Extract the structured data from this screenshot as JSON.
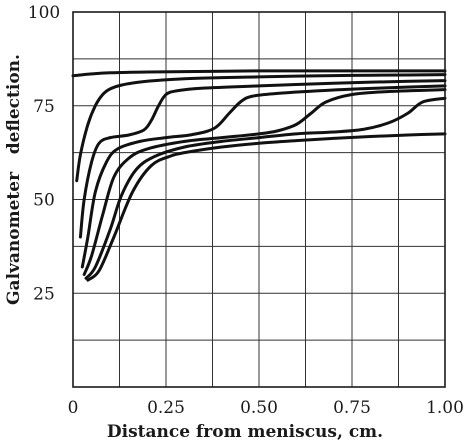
{
  "chart_data": {
    "type": "line",
    "title": "",
    "xlabel": "Distance from meniscus, cm.",
    "ylabel": "Galvanometer   deflection.",
    "xlim": [
      0,
      1.0
    ],
    "ylim": [
      0,
      100
    ],
    "x_ticks": [
      0,
      0.25,
      0.5,
      0.75,
      1.0
    ],
    "x_tick_labels": [
      "0",
      "0.25",
      "0.50",
      "0.75",
      "1.00"
    ],
    "y_ticks": [
      25,
      50,
      75,
      100
    ],
    "y_tick_labels": [
      "25",
      "50",
      "75",
      "100"
    ],
    "grid": true,
    "series": [
      {
        "x": [
          0.0,
          0.05,
          0.1,
          0.2,
          0.3,
          0.4,
          0.5,
          0.6,
          0.7,
          0.8,
          0.9,
          1.0
        ],
        "y": [
          83.0,
          83.5,
          83.8,
          84.0,
          84.1,
          84.2,
          84.3,
          84.3,
          84.3,
          84.3,
          84.3,
          84.3
        ]
      },
      {
        "x": [
          0.01,
          0.02,
          0.04,
          0.06,
          0.08,
          0.1,
          0.13,
          0.17,
          0.22,
          0.3,
          0.4,
          0.5,
          0.6,
          0.75,
          0.9,
          1.0
        ],
        "y": [
          55.0,
          62.0,
          70.0,
          75.0,
          78.0,
          79.5,
          80.5,
          81.2,
          81.7,
          82.2,
          82.5,
          82.7,
          82.9,
          83.1,
          83.2,
          83.3
        ]
      },
      {
        "x": [
          0.02,
          0.03,
          0.05,
          0.07,
          0.1,
          0.15,
          0.19,
          0.21,
          0.23,
          0.25,
          0.28,
          0.35,
          0.5,
          0.7,
          0.85,
          1.0
        ],
        "y": [
          40.0,
          50.0,
          60.0,
          65.0,
          66.5,
          67.2,
          68.5,
          71.0,
          75.0,
          78.0,
          79.0,
          79.7,
          80.3,
          81.0,
          81.4,
          81.7
        ]
      },
      {
        "x": [
          0.025,
          0.04,
          0.06,
          0.09,
          0.12,
          0.18,
          0.25,
          0.32,
          0.38,
          0.42,
          0.45,
          0.48,
          0.55,
          0.7,
          0.85,
          1.0
        ],
        "y": [
          32.0,
          40.0,
          52.0,
          60.0,
          63.5,
          65.5,
          66.5,
          67.3,
          69.0,
          73.0,
          76.0,
          77.5,
          78.3,
          79.2,
          79.8,
          80.3
        ]
      },
      {
        "x": [
          0.03,
          0.05,
          0.08,
          0.11,
          0.15,
          0.2,
          0.3,
          0.4,
          0.5,
          0.55,
          0.6,
          0.64,
          0.68,
          0.75,
          0.85,
          1.0
        ],
        "y": [
          30.0,
          35.0,
          46.0,
          56.0,
          61.0,
          63.5,
          65.5,
          66.5,
          67.5,
          68.3,
          70.0,
          73.0,
          76.0,
          78.0,
          78.8,
          79.3
        ]
      },
      {
        "x": [
          0.035,
          0.06,
          0.1,
          0.13,
          0.17,
          0.22,
          0.3,
          0.4,
          0.5,
          0.6,
          0.7,
          0.78,
          0.85,
          0.9,
          0.94,
          1.0
        ],
        "y": [
          29.0,
          32.0,
          42.0,
          51.0,
          58.0,
          61.5,
          64.0,
          65.5,
          66.5,
          67.5,
          68.0,
          68.7,
          70.5,
          73.0,
          76.0,
          77.0
        ]
      },
      {
        "x": [
          0.04,
          0.07,
          0.11,
          0.16,
          0.21,
          0.26,
          0.3,
          0.4,
          0.5,
          0.6,
          0.7,
          0.8,
          0.9,
          1.0
        ],
        "y": [
          28.5,
          31.0,
          40.0,
          52.0,
          59.0,
          61.5,
          62.5,
          64.0,
          65.0,
          65.7,
          66.3,
          66.8,
          67.2,
          67.5
        ]
      }
    ]
  }
}
